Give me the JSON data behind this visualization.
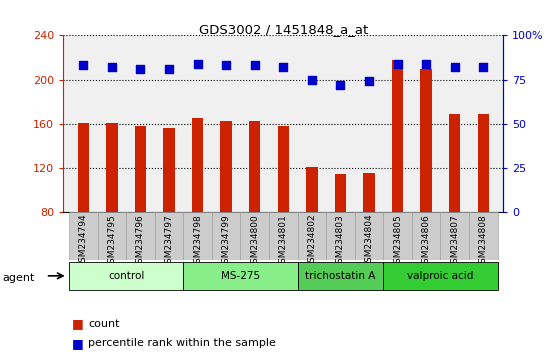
{
  "title": "GDS3002 / 1451848_a_at",
  "samples": [
    "GSM234794",
    "GSM234795",
    "GSM234796",
    "GSM234797",
    "GSM234798",
    "GSM234799",
    "GSM234800",
    "GSM234801",
    "GSM234802",
    "GSM234803",
    "GSM234804",
    "GSM234805",
    "GSM234806",
    "GSM234807",
    "GSM234808"
  ],
  "counts": [
    161,
    161,
    158,
    156,
    165,
    163,
    163,
    158,
    121,
    115,
    116,
    218,
    210,
    169,
    169
  ],
  "percentiles": [
    83,
    82,
    81,
    81,
    84,
    83,
    83,
    82,
    75,
    72,
    74,
    84,
    84,
    82,
    82
  ],
  "groups": [
    {
      "label": "control",
      "start": 0,
      "end": 4,
      "color": "#ccffcc"
    },
    {
      "label": "MS-275",
      "start": 4,
      "end": 8,
      "color": "#88ee88"
    },
    {
      "label": "trichostatin A",
      "start": 8,
      "end": 11,
      "color": "#55cc55"
    },
    {
      "label": "valproic acid",
      "start": 11,
      "end": 15,
      "color": "#33cc33"
    }
  ],
  "ylim_left": [
    80,
    240
  ],
  "ylim_right": [
    0,
    100
  ],
  "yticks_left": [
    80,
    120,
    160,
    200,
    240
  ],
  "yticks_right": [
    0,
    25,
    50,
    75,
    100
  ],
  "bar_color": "#cc2200",
  "dot_color": "#0000cc",
  "bar_width": 0.4,
  "dot_size": 28,
  "xlabel_color": "#cc2200",
  "ylabel_right_color": "#0000cc",
  "bg_plot": "#f0f0f0",
  "bg_xtick": "#cccccc"
}
